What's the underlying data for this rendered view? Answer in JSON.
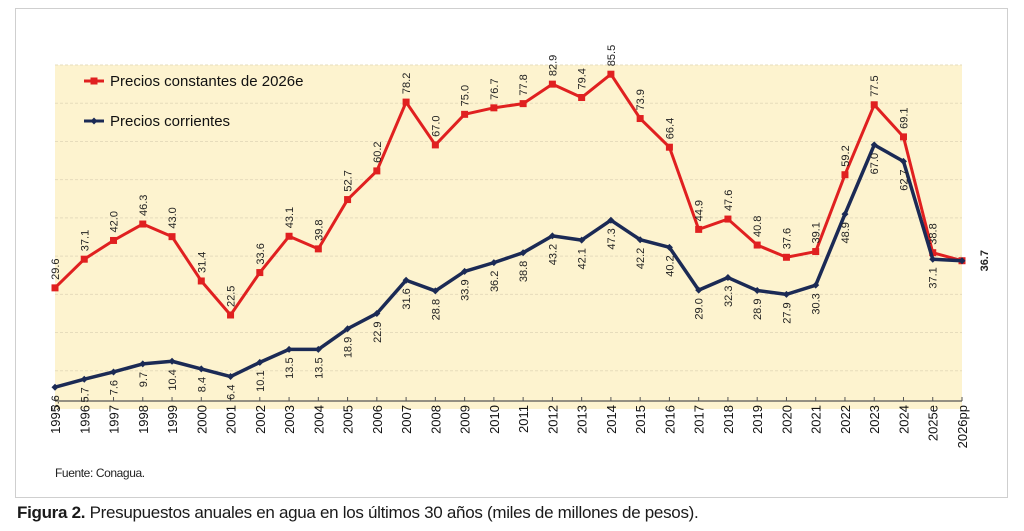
{
  "chart_data": {
    "type": "line",
    "title": "",
    "xlabel": "",
    "ylabel": "",
    "ylim": [
      0,
      90
    ],
    "grid": true,
    "legend_position": "top-left",
    "categories": [
      "1995",
      "1996",
      "1997",
      "1998",
      "1999",
      "2000",
      "2001",
      "2002",
      "2003",
      "2004",
      "2005",
      "2006",
      "2007",
      "2008",
      "2009",
      "2010",
      "2011",
      "2012",
      "2013",
      "2014",
      "2015",
      "2016",
      "2017",
      "2018",
      "2019",
      "2020",
      "2021",
      "2022",
      "2023",
      "2024",
      "2025e",
      "2026pp"
    ],
    "series": [
      {
        "name": "Precios constantes de 2026e",
        "color": "#e02020",
        "marker": "square",
        "values": [
          29.6,
          37.1,
          42.0,
          46.3,
          43.0,
          31.4,
          22.5,
          33.6,
          43.1,
          39.8,
          52.7,
          60.2,
          78.2,
          67.0,
          75.0,
          76.7,
          77.8,
          82.9,
          79.4,
          85.5,
          73.9,
          66.4,
          44.9,
          47.6,
          40.8,
          37.6,
          39.1,
          59.2,
          77.5,
          69.1,
          38.8,
          36.7
        ],
        "labels": [
          "29.6",
          "37.1",
          "42.0",
          "46.3",
          "43.0",
          "31.4",
          "22.5",
          "33.6",
          "43.1",
          "39.8",
          "52.7",
          "60.2",
          "78.2",
          "67.0",
          "75.0",
          "76.7",
          "77.8",
          "82.9",
          "79.4",
          "85.5",
          "73.9",
          "66.4",
          "44.9",
          "47.6",
          "40.8",
          "37.6",
          "39.1",
          "59.2",
          "77.5",
          "69.1",
          "38.8",
          ""
        ]
      },
      {
        "name": "Precios corrientes",
        "color": "#1b2a55",
        "marker": "diamond",
        "values": [
          3.6,
          5.7,
          7.6,
          9.7,
          10.4,
          8.4,
          6.4,
          10.1,
          13.5,
          13.5,
          18.9,
          22.9,
          31.6,
          28.8,
          33.9,
          36.2,
          38.8,
          43.2,
          42.1,
          47.3,
          42.2,
          40.2,
          29.0,
          32.3,
          28.9,
          27.9,
          30.3,
          48.9,
          67.0,
          62.7,
          37.1,
          36.7
        ],
        "labels": [
          "3.6",
          "5.7",
          "7.6",
          "9.7",
          "10.4",
          "8.4",
          "6.4",
          "10.1",
          "13.5",
          "13.5",
          "18.9",
          "22.9",
          "31.6",
          "28.8",
          "33.9",
          "36.2",
          "38.8",
          "43.2",
          "42.1",
          "47.3",
          "42.2",
          "40.2",
          "29.0",
          "32.3",
          "28.9",
          "27.9",
          "30.3",
          "48.9",
          "67.0",
          "62.7",
          "37.1",
          "36.7"
        ]
      }
    ],
    "plot_background": "#fdf3cf"
  },
  "source": "Fuente: Conagua.",
  "caption": {
    "label": "Figura 2.",
    "text": " Presupuestos anuales en agua en los últimos 30 años (miles de millones de pesos)."
  }
}
